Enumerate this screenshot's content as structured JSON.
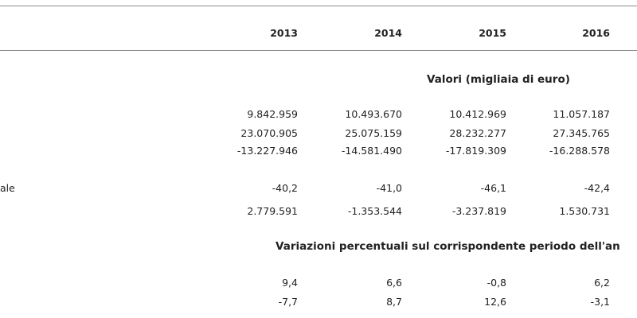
{
  "table": {
    "years": [
      "2013",
      "2014",
      "2015",
      "2016"
    ],
    "section_values_title": "Valori (migliaia di euro)",
    "section_variations_title": "Variazioni percentuali sul corrispondente periodo dell'an",
    "rows_values": [
      {
        "label": "",
        "cells": [
          "9.842.959",
          "10.493.670",
          "10.412.969",
          "11.057.187"
        ]
      },
      {
        "label": "",
        "cells": [
          "23.070.905",
          "25.075.159",
          "28.232.277",
          "27.345.765"
        ]
      },
      {
        "label": "",
        "cells": [
          "-13.227.946",
          "-14.581.490",
          "-17.819.309",
          "-16.288.578"
        ]
      },
      {
        "label": "ale",
        "cells": [
          "-40,2",
          "-41,0",
          "-46,1",
          "-42,4"
        ]
      },
      {
        "label": "",
        "cells": [
          "2.779.591",
          "-1.353.544",
          "-3.237.819",
          "1.530.731"
        ]
      }
    ],
    "rows_variations": [
      {
        "label": "",
        "cells": [
          "9,4",
          "6,6",
          "-0,8",
          "6,2"
        ]
      },
      {
        "label": "",
        "cells": [
          "-7,7",
          "8,7",
          "12,6",
          "-3,1"
        ]
      }
    ]
  }
}
